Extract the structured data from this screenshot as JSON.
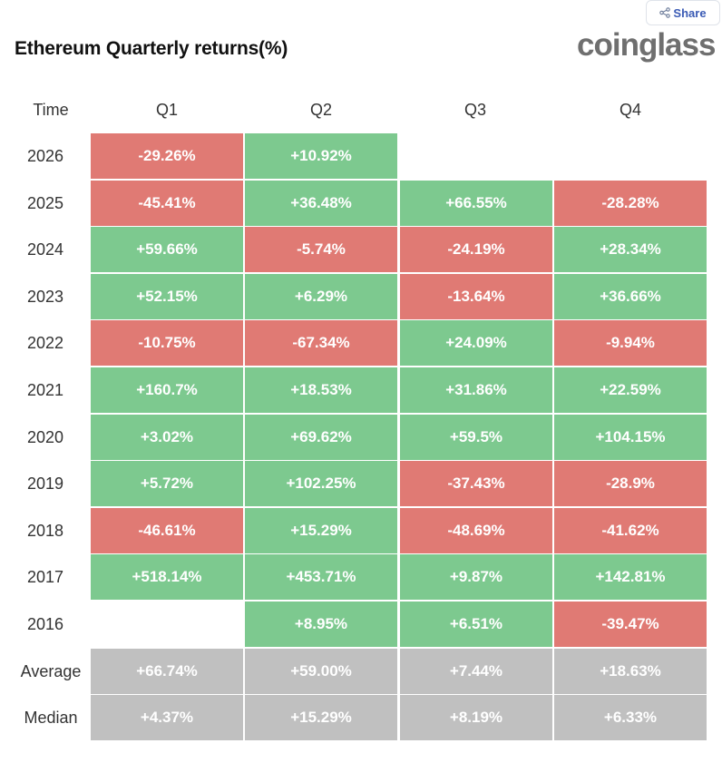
{
  "share": {
    "label": "Share"
  },
  "title": "Ethereum Quarterly returns(%)",
  "brand": "coinglass",
  "colors": {
    "positive": "#7dc98f",
    "negative": "#e07a74",
    "summary": "#c0c0c0"
  },
  "chart_data": {
    "type": "heatmap",
    "title": "Ethereum Quarterly returns(%)",
    "row_header": "Time",
    "columns": [
      "Q1",
      "Q2",
      "Q3",
      "Q4"
    ],
    "rows": [
      {
        "label": "2026",
        "cells": [
          "-29.26%",
          "+10.92%",
          "",
          ""
        ]
      },
      {
        "label": "2025",
        "cells": [
          "-45.41%",
          "+36.48%",
          "+66.55%",
          "-28.28%"
        ]
      },
      {
        "label": "2024",
        "cells": [
          "+59.66%",
          "-5.74%",
          "-24.19%",
          "+28.34%"
        ]
      },
      {
        "label": "2023",
        "cells": [
          "+52.15%",
          "+6.29%",
          "-13.64%",
          "+36.66%"
        ]
      },
      {
        "label": "2022",
        "cells": [
          "-10.75%",
          "-67.34%",
          "+24.09%",
          "-9.94%"
        ]
      },
      {
        "label": "2021",
        "cells": [
          "+160.7%",
          "+18.53%",
          "+31.86%",
          "+22.59%"
        ]
      },
      {
        "label": "2020",
        "cells": [
          "+3.02%",
          "+69.62%",
          "+59.5%",
          "+104.15%"
        ]
      },
      {
        "label": "2019",
        "cells": [
          "+5.72%",
          "+102.25%",
          "-37.43%",
          "-28.9%"
        ]
      },
      {
        "label": "2018",
        "cells": [
          "-46.61%",
          "+15.29%",
          "-48.69%",
          "-41.62%"
        ]
      },
      {
        "label": "2017",
        "cells": [
          "+518.14%",
          "+453.71%",
          "+9.87%",
          "+142.81%"
        ]
      },
      {
        "label": "2016",
        "cells": [
          "",
          "+8.95%",
          "+6.51%",
          "-39.47%"
        ]
      }
    ],
    "summary_rows": [
      {
        "label": "Average",
        "cells": [
          "+66.74%",
          "+59.00%",
          "+7.44%",
          "+18.63%"
        ]
      },
      {
        "label": "Median",
        "cells": [
          "+4.37%",
          "+15.29%",
          "+8.19%",
          "+6.33%"
        ]
      }
    ]
  }
}
